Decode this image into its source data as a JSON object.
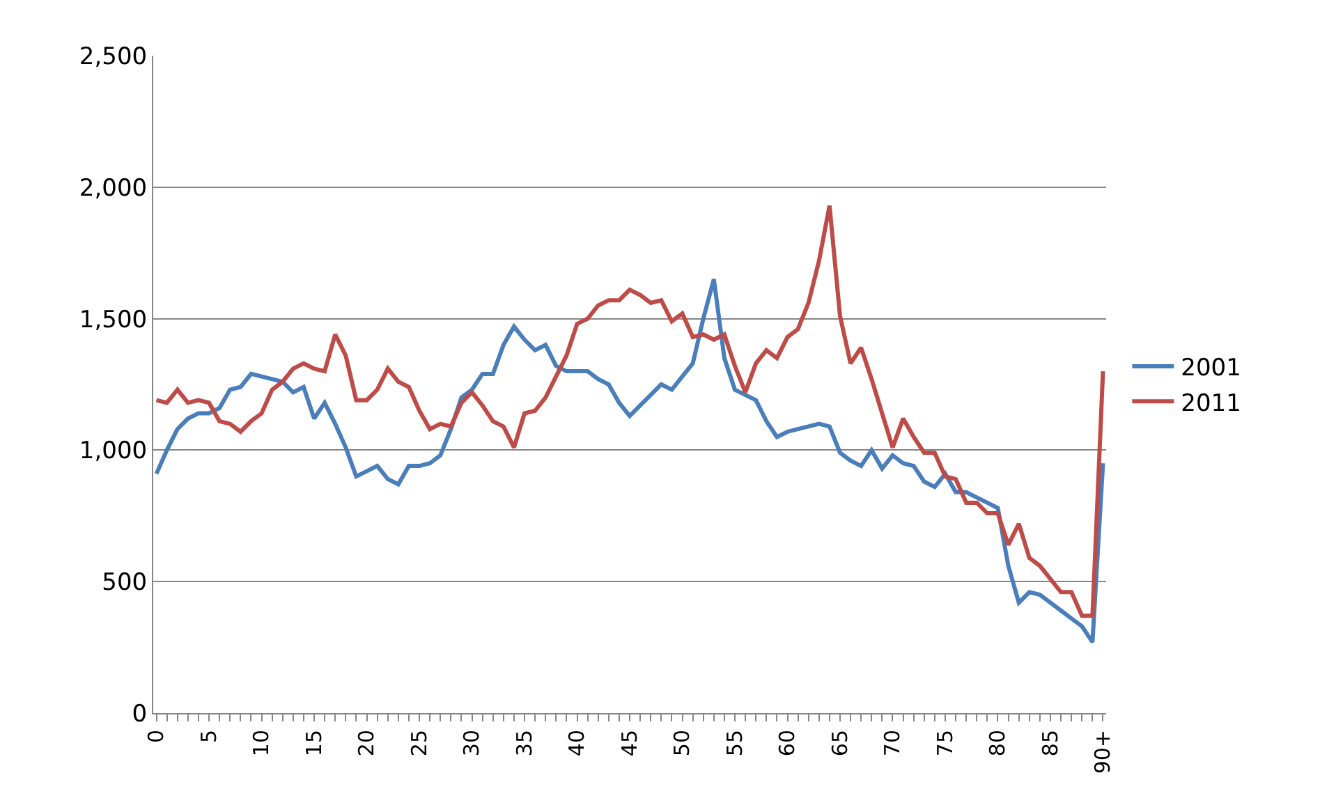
{
  "chart_data": {
    "type": "line",
    "categories": [
      "0",
      null,
      null,
      null,
      null,
      "5",
      null,
      null,
      null,
      null,
      "10",
      null,
      null,
      null,
      null,
      "15",
      null,
      null,
      null,
      null,
      "20",
      null,
      null,
      null,
      null,
      "25",
      null,
      null,
      null,
      null,
      "30",
      null,
      null,
      null,
      null,
      "35",
      null,
      null,
      null,
      null,
      "40",
      null,
      null,
      null,
      null,
      "45",
      null,
      null,
      null,
      null,
      "50",
      null,
      null,
      null,
      null,
      "55",
      null,
      null,
      null,
      null,
      "60",
      null,
      null,
      null,
      null,
      "65",
      null,
      null,
      null,
      null,
      "70",
      null,
      null,
      null,
      null,
      "75",
      null,
      null,
      null,
      null,
      "80",
      null,
      null,
      null,
      null,
      "85",
      null,
      null,
      null,
      null,
      "90+"
    ],
    "series": [
      {
        "name": "2001",
        "color": "#4a7ebb",
        "values": [
          910,
          1000,
          1080,
          1120,
          1140,
          1140,
          1160,
          1230,
          1240,
          1290,
          1280,
          1270,
          1260,
          1220,
          1240,
          1120,
          1180,
          1100,
          1010,
          900,
          920,
          940,
          890,
          870,
          940,
          940,
          950,
          980,
          1080,
          1200,
          1230,
          1290,
          1290,
          1400,
          1470,
          1420,
          1380,
          1400,
          1320,
          1300,
          1300,
          1300,
          1270,
          1250,
          1180,
          1130,
          1170,
          1210,
          1250,
          1230,
          1280,
          1330,
          1500,
          1650,
          1350,
          1230,
          1210,
          1190,
          1110,
          1050,
          1070,
          1080,
          1090,
          1100,
          1090,
          990,
          960,
          940,
          1000,
          930,
          980,
          950,
          940,
          880,
          860,
          910,
          840,
          840,
          820,
          800,
          780,
          560,
          420,
          460,
          450,
          420,
          390,
          360,
          330,
          270,
          950
        ]
      },
      {
        "name": "2011",
        "color": "#be4b48",
        "values": [
          1190,
          1180,
          1230,
          1180,
          1190,
          1180,
          1110,
          1100,
          1070,
          1110,
          1140,
          1230,
          1260,
          1310,
          1330,
          1310,
          1300,
          1440,
          1360,
          1190,
          1190,
          1230,
          1310,
          1260,
          1240,
          1150,
          1080,
          1100,
          1090,
          1180,
          1220,
          1170,
          1110,
          1090,
          1010,
          1140,
          1150,
          1200,
          1280,
          1360,
          1480,
          1500,
          1550,
          1570,
          1570,
          1610,
          1590,
          1560,
          1570,
          1490,
          1520,
          1430,
          1440,
          1420,
          1440,
          1320,
          1220,
          1330,
          1380,
          1350,
          1430,
          1460,
          1560,
          1720,
          1930,
          1510,
          1330,
          1390,
          1270,
          1140,
          1010,
          1120,
          1050,
          990,
          990,
          900,
          890,
          800,
          800,
          760,
          760,
          640,
          720,
          590,
          560,
          510,
          460,
          460,
          370,
          370,
          1300
        ]
      }
    ],
    "ylim": [
      0,
      2500
    ],
    "yticks": [
      {
        "value": 0,
        "label": "0"
      },
      {
        "value": 500,
        "label": "500"
      },
      {
        "value": 1000,
        "label": "1,000"
      },
      {
        "value": 1500,
        "label": "1,500"
      },
      {
        "value": 2000,
        "label": "2,000"
      },
      {
        "value": 2500,
        "label": "2,500"
      }
    ],
    "grid": "y",
    "legend": "right",
    "marker": "none",
    "line_style": "solid"
  }
}
